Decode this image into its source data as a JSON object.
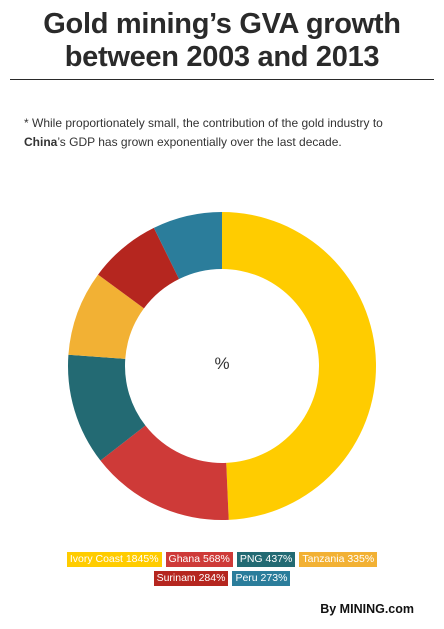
{
  "header": {
    "title_line1": "Gold mining’s GVA growth",
    "title_line2": "between 2003 and 2013"
  },
  "note": {
    "prefix": "* While proportionately small, the contribution of the gold industry to ",
    "highlight": "China",
    "suffix": "’s GDP has grown exponentially over the last decade."
  },
  "chart_data": {
    "type": "pie",
    "donut": true,
    "center_label": "%",
    "legend_placement": "bottom",
    "categories": [
      "Ivory Coast",
      "Ghana",
      "PNG",
      "Tanzania",
      "Surinam",
      "Peru"
    ],
    "values": [
      1845,
      568,
      437,
      335,
      284,
      273
    ],
    "unit": "%",
    "colors": [
      "#FFCC00",
      "#CE3A38",
      "#236A73",
      "#F2B134",
      "#B5261F",
      "#2B7D9B"
    ],
    "legend": [
      {
        "label": "Ivory Coast 1845%"
      },
      {
        "label": "Ghana 568%"
      },
      {
        "label": "PNG 437%"
      },
      {
        "label": "Tanzania 335%"
      },
      {
        "label": "Surinam 284%"
      },
      {
        "label": "Peru 273%"
      }
    ]
  },
  "footer": {
    "byline": "By MINING.com"
  }
}
